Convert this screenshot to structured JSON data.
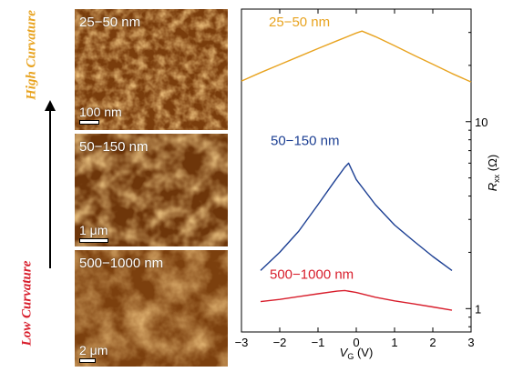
{
  "figure": {
    "side_labels": {
      "top": "High Curvature",
      "bottom": "Low Curvature"
    },
    "colors": {
      "high": "#e8a31f",
      "low": "#d81e2c"
    }
  },
  "panels": [
    {
      "label": "25−50 nm",
      "scale": "100 nm"
    },
    {
      "label": "50−150 nm",
      "scale": "1 μm"
    },
    {
      "label": "500−1000 nm",
      "scale": "2 μm"
    }
  ],
  "chart_data": {
    "type": "line",
    "xlabel": "V",
    "xlabel_sub": "G",
    "xlabel_unit": " (V)",
    "ylabel": "R",
    "ylabel_sub": "xx",
    "ylabel_unit": " (Ω)",
    "xlim": [
      -3,
      3
    ],
    "ylim": [
      0.75,
      40
    ],
    "y_scale": "log",
    "x_ticks": [
      -3,
      -2,
      -1,
      0,
      1,
      2,
      3
    ],
    "y_ticks": [
      1,
      10
    ],
    "grid": false,
    "series": [
      {
        "name": "25−50 nm",
        "color": "#e8a31f",
        "x": [
          -3.0,
          -2.5,
          -2.0,
          -1.5,
          -1.0,
          -0.5,
          0.0,
          0.15,
          0.5,
          1.0,
          1.5,
          2.0,
          2.5,
          3.0
        ],
        "y": [
          16.5,
          18.3,
          20.2,
          22.3,
          24.6,
          27.1,
          29.8,
          30.5,
          28.5,
          25.5,
          22.7,
          20.3,
          18.1,
          16.3
        ]
      },
      {
        "name": "50−150 nm",
        "color": "#1c3f93",
        "x": [
          -2.5,
          -2.0,
          -1.5,
          -1.0,
          -0.6,
          -0.3,
          -0.2,
          0.0,
          0.5,
          1.0,
          1.5,
          2.0,
          2.5
        ],
        "y": [
          1.6,
          2.0,
          2.6,
          3.6,
          4.7,
          5.7,
          6.0,
          4.9,
          3.6,
          2.8,
          2.3,
          1.9,
          1.6
        ]
      },
      {
        "name": "500−1000 nm",
        "color": "#d81e2c",
        "x": [
          -2.5,
          -2.0,
          -1.5,
          -1.0,
          -0.5,
          -0.3,
          0.0,
          0.5,
          1.0,
          1.5,
          2.0,
          2.5
        ],
        "y": [
          1.09,
          1.12,
          1.16,
          1.2,
          1.24,
          1.25,
          1.22,
          1.15,
          1.1,
          1.06,
          1.02,
          0.98
        ]
      }
    ]
  }
}
